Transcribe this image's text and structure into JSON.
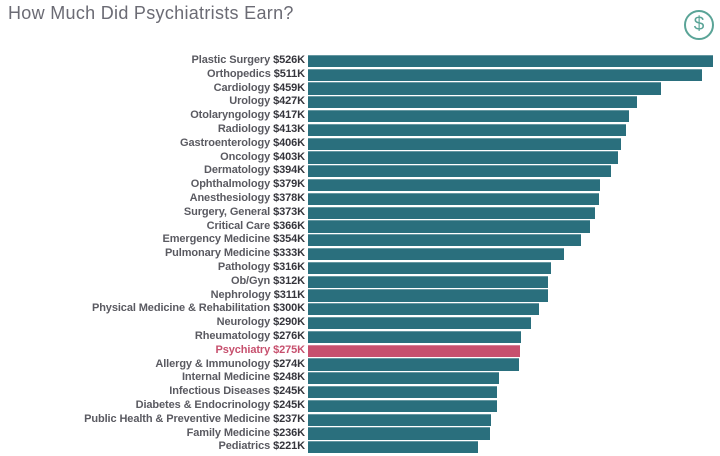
{
  "header": {
    "title": "How Much Did Psychiatrists Earn?",
    "dollar_icon_glyph": "$"
  },
  "colors": {
    "bar_teal": "#2a6f7d",
    "bar_highlight_pink": "#c7506e",
    "title_gray": "#6b6b74",
    "label_gray": "#5a5a61",
    "value_dark": "#35353c",
    "dollar_icon_teal": "#5aa497",
    "background": "#ffffff"
  },
  "chart_data": {
    "type": "bar",
    "orientation": "horizontal",
    "title": "How Much Did Psychiatrists Earn?",
    "unit": "USD thousands",
    "xlabel": "",
    "ylabel": "",
    "xlim": [
      0,
      526
    ],
    "grid": false,
    "legend": false,
    "highlight_category": "Psychiatry",
    "categories": [
      "Plastic Surgery",
      "Orthopedics",
      "Cardiology",
      "Urology",
      "Otolaryngology",
      "Radiology",
      "Gastroenterology",
      "Oncology",
      "Dermatology",
      "Ophthalmology",
      "Anesthesiology",
      "Surgery, General",
      "Critical Care",
      "Emergency Medicine",
      "Pulmonary Medicine",
      "Pathology",
      "Ob/Gyn",
      "Nephrology",
      "Physical Medicine & Rehabilitation",
      "Neurology",
      "Rheumatology",
      "Psychiatry",
      "Allergy & Immunology",
      "Internal Medicine",
      "Infectious Diseases",
      "Diabetes & Endocrinology",
      "Public Health & Preventive Medicine",
      "Family Medicine",
      "Pediatrics"
    ],
    "values": [
      526,
      511,
      459,
      427,
      417,
      413,
      406,
      403,
      394,
      379,
      378,
      373,
      366,
      354,
      333,
      316,
      312,
      311,
      300,
      290,
      276,
      275,
      274,
      248,
      245,
      245,
      237,
      236,
      221
    ],
    "value_labels": [
      "$526K",
      "$511K",
      "$459K",
      "$427K",
      "$417K",
      "$413K",
      "$406K",
      "$403K",
      "$394K",
      "$379K",
      "$378K",
      "$373K",
      "$366K",
      "$354K",
      "$333K",
      "$316K",
      "$312K",
      "$311K",
      "$300K",
      "$290K",
      "$276K",
      "$275K",
      "$274K",
      "$248K",
      "$245K",
      "$245K",
      "$237K",
      "$236K",
      "$221K"
    ]
  }
}
